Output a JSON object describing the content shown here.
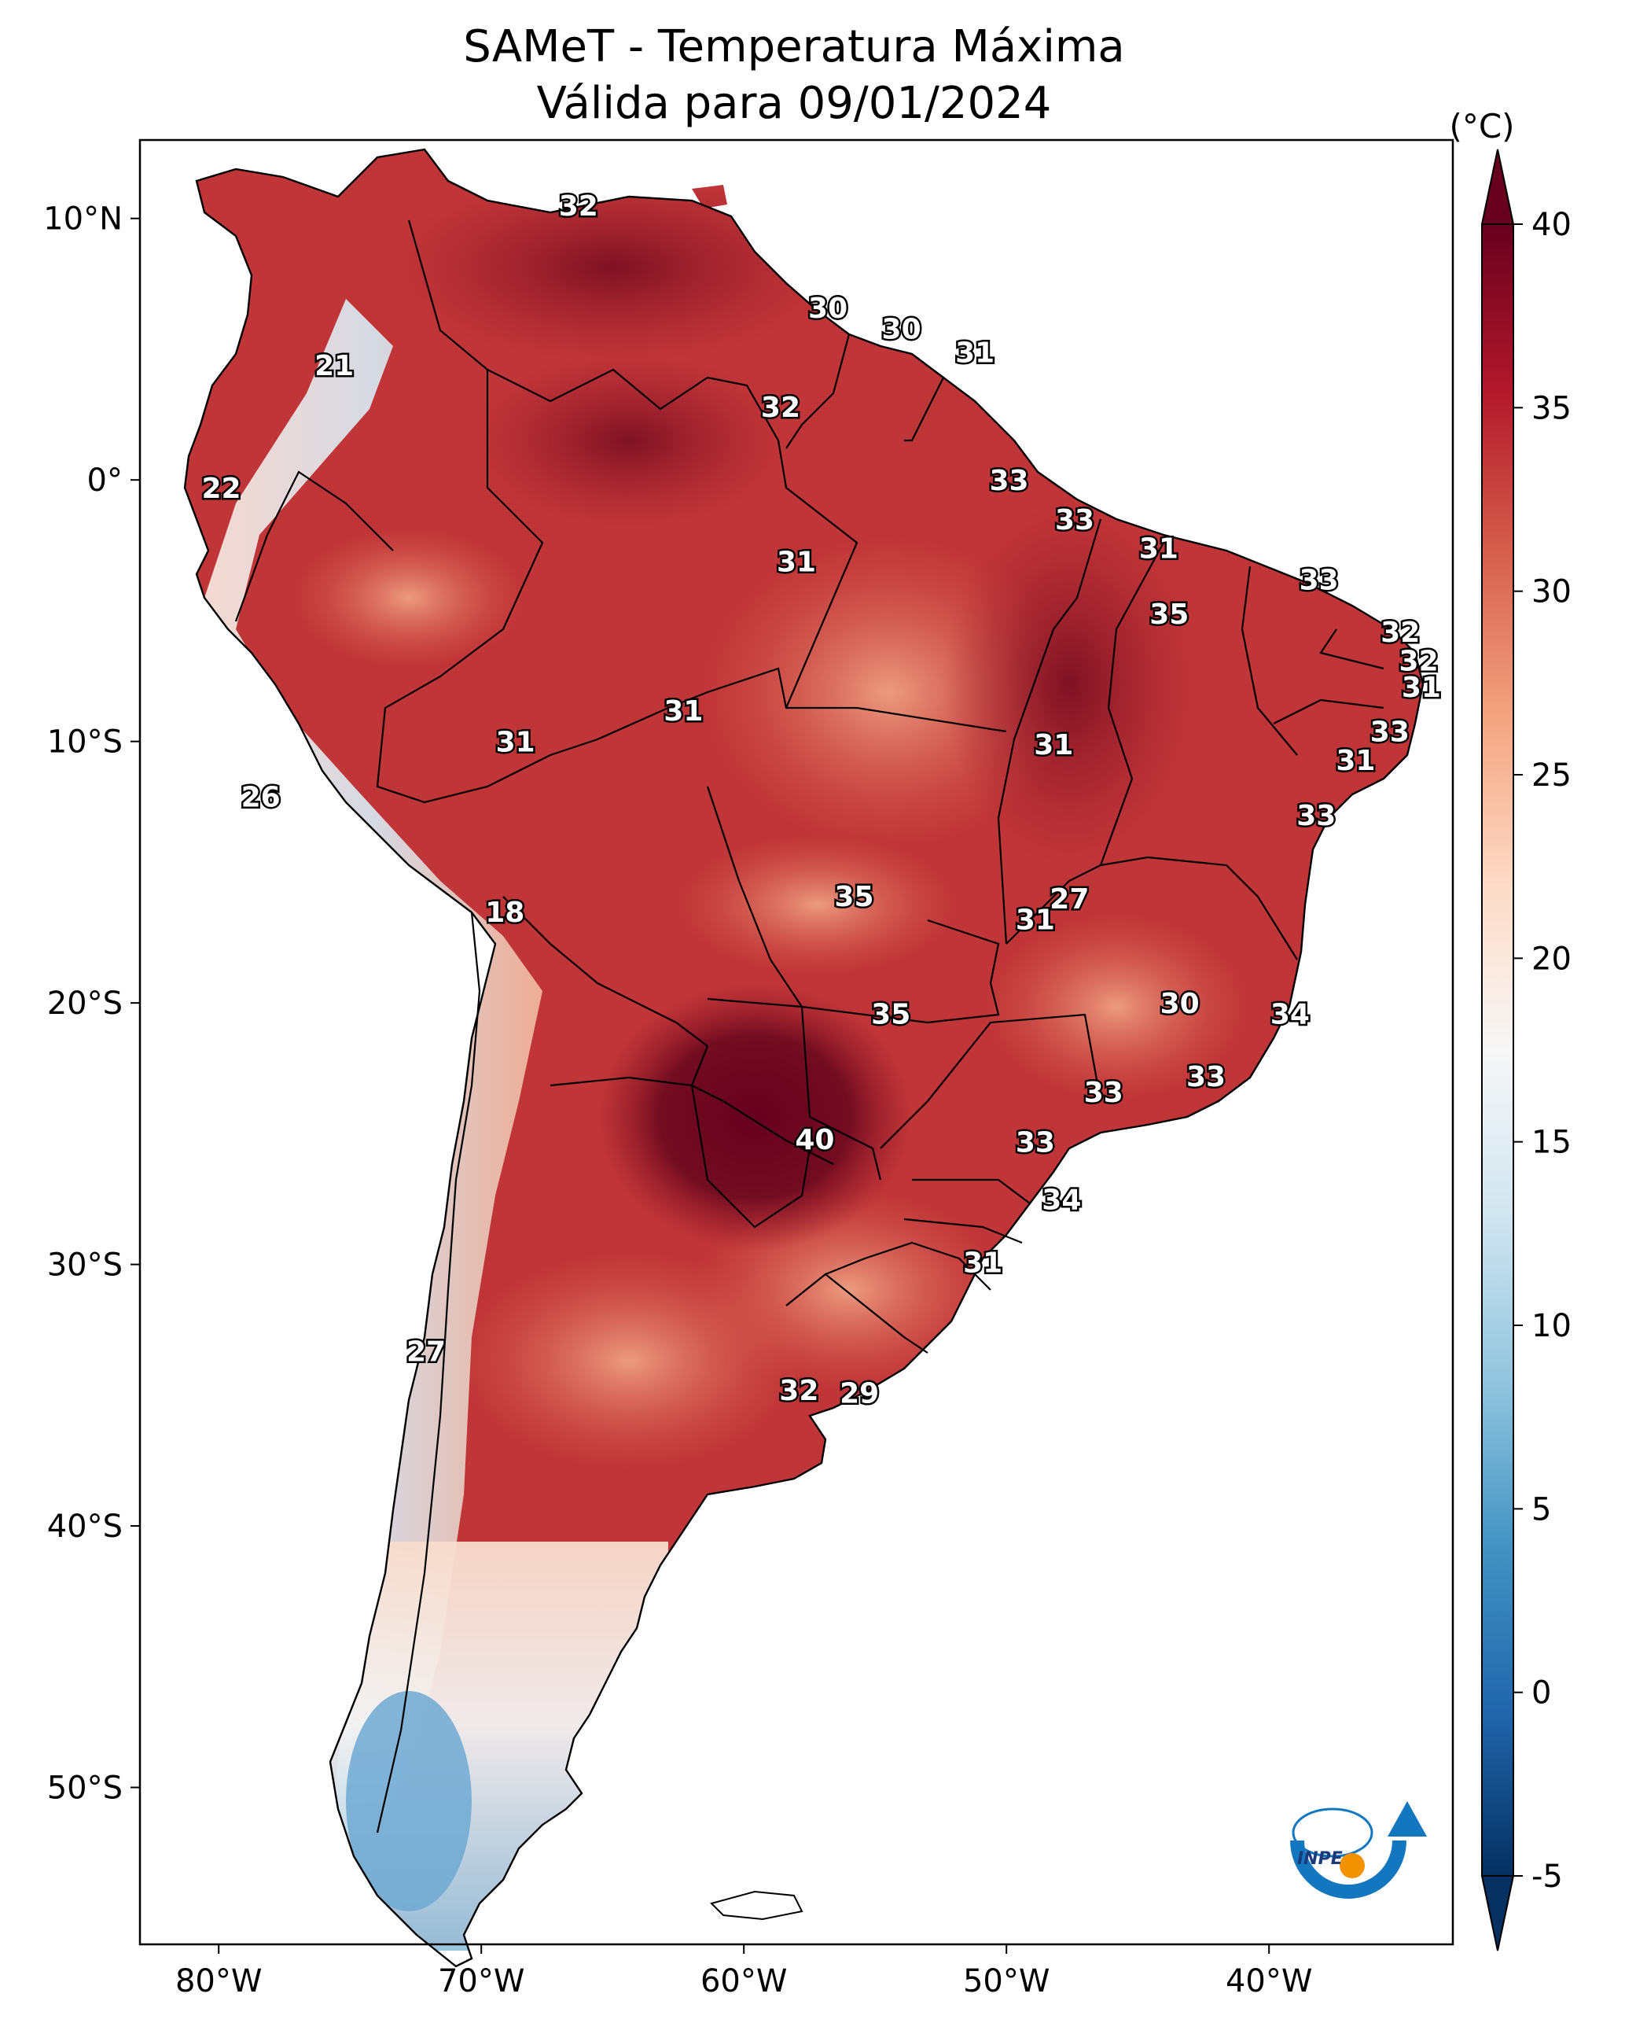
{
  "title": {
    "line1": "SAMeT - Temperatura Máxima",
    "line2": "Válida para 09/01/2024"
  },
  "map": {
    "lon_range": [
      -83,
      -33
    ],
    "lat_range": [
      -56,
      13
    ],
    "x_ticks": [
      {
        "lon": -80,
        "label": "80°W"
      },
      {
        "lon": -70,
        "label": "70°W"
      },
      {
        "lon": -60,
        "label": "60°W"
      },
      {
        "lon": -50,
        "label": "50°W"
      },
      {
        "lon": -40,
        "label": "40°W"
      }
    ],
    "y_ticks": [
      {
        "lat": 10,
        "label": "10°N"
      },
      {
        "lat": 0,
        "label": "0°"
      },
      {
        "lat": -10,
        "label": "10°S"
      },
      {
        "lat": -20,
        "label": "20°S"
      },
      {
        "lat": -30,
        "label": "30°S"
      },
      {
        "lat": -40,
        "label": "40°S"
      },
      {
        "lat": -50,
        "label": "50°S"
      }
    ],
    "isotherm_labels": [
      {
        "lon": -66.3,
        "lat": 10.5,
        "value": "32"
      },
      {
        "lon": -75.6,
        "lat": 4.4,
        "value": "21"
      },
      {
        "lon": -56.8,
        "lat": 6.6,
        "value": "30"
      },
      {
        "lon": -54.0,
        "lat": 5.8,
        "value": "30"
      },
      {
        "lon": -51.2,
        "lat": 4.9,
        "value": "31"
      },
      {
        "lon": -58.6,
        "lat": 2.8,
        "value": "32"
      },
      {
        "lon": -79.9,
        "lat": -0.3,
        "value": "22"
      },
      {
        "lon": -49.9,
        "lat": 0.0,
        "value": "33"
      },
      {
        "lon": -47.4,
        "lat": -1.5,
        "value": "33"
      },
      {
        "lon": -44.2,
        "lat": -2.6,
        "value": "31"
      },
      {
        "lon": -58.0,
        "lat": -3.1,
        "value": "31"
      },
      {
        "lon": -38.1,
        "lat": -3.8,
        "value": "33"
      },
      {
        "lon": -43.8,
        "lat": -5.1,
        "value": "35"
      },
      {
        "lon": -35.0,
        "lat": -5.8,
        "value": "32"
      },
      {
        "lon": -34.3,
        "lat": -6.9,
        "value": "32"
      },
      {
        "lon": -34.2,
        "lat": -7.9,
        "value": "31"
      },
      {
        "lon": -62.3,
        "lat": -8.8,
        "value": "31"
      },
      {
        "lon": -68.7,
        "lat": -10.0,
        "value": "31"
      },
      {
        "lon": -48.2,
        "lat": -10.1,
        "value": "31"
      },
      {
        "lon": -35.4,
        "lat": -9.6,
        "value": "33"
      },
      {
        "lon": -36.7,
        "lat": -10.7,
        "value": "31"
      },
      {
        "lon": -38.2,
        "lat": -12.8,
        "value": "33"
      },
      {
        "lon": -78.4,
        "lat": -12.1,
        "value": "26"
      },
      {
        "lon": -69.1,
        "lat": -16.5,
        "value": "18"
      },
      {
        "lon": -55.8,
        "lat": -15.9,
        "value": "35"
      },
      {
        "lon": -47.6,
        "lat": -16.0,
        "value": "27"
      },
      {
        "lon": -48.9,
        "lat": -16.8,
        "value": "31"
      },
      {
        "lon": -43.4,
        "lat": -20.0,
        "value": "30"
      },
      {
        "lon": -39.2,
        "lat": -20.4,
        "value": "34"
      },
      {
        "lon": -54.4,
        "lat": -20.4,
        "value": "35"
      },
      {
        "lon": -42.4,
        "lat": -22.8,
        "value": "33"
      },
      {
        "lon": -46.3,
        "lat": -23.4,
        "value": "33"
      },
      {
        "lon": -57.3,
        "lat": -25.2,
        "value": "40"
      },
      {
        "lon": -48.9,
        "lat": -25.3,
        "value": "33"
      },
      {
        "lon": -47.9,
        "lat": -27.5,
        "value": "34"
      },
      {
        "lon": -50.9,
        "lat": -29.9,
        "value": "31"
      },
      {
        "lon": -72.1,
        "lat": -33.3,
        "value": "27"
      },
      {
        "lon": -57.9,
        "lat": -34.8,
        "value": "32"
      },
      {
        "lon": -55.6,
        "lat": -34.9,
        "value": "29"
      }
    ]
  },
  "colorbar": {
    "unit_label": "(°C)",
    "vmin": -5,
    "vmax": 40,
    "ticks": [
      {
        "value": 40,
        "label": "40"
      },
      {
        "value": 35,
        "label": "35"
      },
      {
        "value": 30,
        "label": "30"
      },
      {
        "value": 25,
        "label": "25"
      },
      {
        "value": 20,
        "label": "20"
      },
      {
        "value": 15,
        "label": "15"
      },
      {
        "value": 10,
        "label": "10"
      },
      {
        "value": 5,
        "label": "5"
      },
      {
        "value": 0,
        "label": "0"
      },
      {
        "value": -5,
        "label": "-5"
      }
    ],
    "colors": [
      "#053061",
      "#2166ac",
      "#4393c3",
      "#92c5de",
      "#d1e5f0",
      "#f7f7f7",
      "#fddbc7",
      "#f4a582",
      "#d6604d",
      "#b2182b",
      "#67001f"
    ]
  },
  "logo": {
    "text": "INPE"
  },
  "colors": {
    "hot": "#6d0a20",
    "warm": "#c03538",
    "mild": "#e58469",
    "cool": "#f5d2c3",
    "cold": "#8fbfdc",
    "ocean": "#ffffff",
    "logo_blue": "#1377c0",
    "logo_orange": "#f39200"
  }
}
